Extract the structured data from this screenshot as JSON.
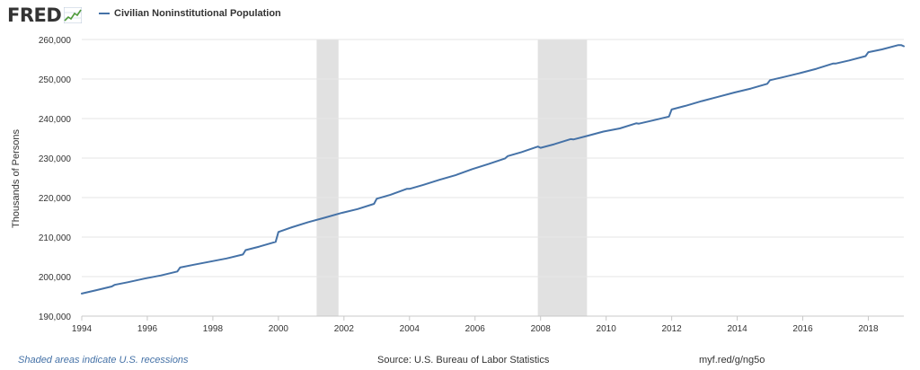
{
  "header": {
    "logo_text": "FRED",
    "legend_label": "Civilian Noninstitutional Population"
  },
  "colors": {
    "series": "#4572a7",
    "recession": "#e1e1e1",
    "grid": "#e6e6e6",
    "text": "#333333"
  },
  "chart_data": {
    "type": "line",
    "ylabel": "Thousands of Persons",
    "ylim": [
      190000,
      260000
    ],
    "yticks": [
      190000,
      200000,
      210000,
      220000,
      230000,
      240000,
      250000,
      260000
    ],
    "ytick_labels": [
      "190,000",
      "200,000",
      "210,000",
      "220,000",
      "230,000",
      "240,000",
      "250,000",
      "260,000"
    ],
    "xlim": [
      "1994-01",
      "2019-02"
    ],
    "xticks": [
      "1994",
      "1996",
      "1998",
      "2000",
      "2002",
      "2004",
      "2006",
      "2008",
      "2010",
      "2012",
      "2014",
      "2016",
      "2018"
    ],
    "grid": "horizontal",
    "recessions": [
      [
        "2001-03",
        "2001-11"
      ],
      [
        "2007-12",
        "2009-06"
      ]
    ],
    "series": [
      {
        "name": "Civilian Noninstitutional Population",
        "x": [
          "1994-01",
          "1994-06",
          "1994-12",
          "1995-01",
          "1995-06",
          "1995-12",
          "1996-06",
          "1996-12",
          "1997-01",
          "1997-06",
          "1997-12",
          "1998-06",
          "1998-12",
          "1999-01",
          "1999-06",
          "1999-12",
          "2000-01",
          "2000-06",
          "2000-12",
          "2001-06",
          "2001-12",
          "2002-06",
          "2002-12",
          "2003-01",
          "2003-06",
          "2003-12",
          "2004-01",
          "2004-06",
          "2004-12",
          "2005-06",
          "2005-12",
          "2006-06",
          "2006-12",
          "2007-01",
          "2007-06",
          "2007-12",
          "2008-01",
          "2008-06",
          "2008-12",
          "2009-01",
          "2009-06",
          "2009-12",
          "2010-06",
          "2010-12",
          "2011-01",
          "2011-06",
          "2011-12",
          "2012-01",
          "2012-06",
          "2012-12",
          "2013-06",
          "2013-12",
          "2014-06",
          "2014-12",
          "2015-01",
          "2015-06",
          "2015-12",
          "2016-06",
          "2016-12",
          "2017-01",
          "2017-06",
          "2017-12",
          "2018-01",
          "2018-06",
          "2018-12",
          "2019-01",
          "2019-02"
        ],
        "values": [
          195700,
          196500,
          197500,
          197900,
          198600,
          199500,
          200300,
          201300,
          202300,
          203000,
          203800,
          204600,
          205600,
          206700,
          207600,
          208800,
          211300,
          212500,
          213800,
          214900,
          216100,
          217100,
          218400,
          219700,
          220700,
          222200,
          222200,
          223200,
          224500,
          225700,
          227200,
          228500,
          229900,
          230500,
          231500,
          232900,
          232600,
          233500,
          234800,
          234700,
          235600,
          236700,
          237500,
          238800,
          238700,
          239500,
          240500,
          242300,
          243200,
          244400,
          245500,
          246600,
          247600,
          248800,
          249700,
          250500,
          251500,
          252600,
          253900,
          253900,
          254700,
          255800,
          256800,
          257500,
          258600,
          258600,
          258300
        ]
      }
    ]
  },
  "footer": {
    "note": "Shaded areas indicate U.S. recessions",
    "source": "Source: U.S. Bureau of Labor Statistics",
    "url": "myf.red/g/ng5o"
  }
}
